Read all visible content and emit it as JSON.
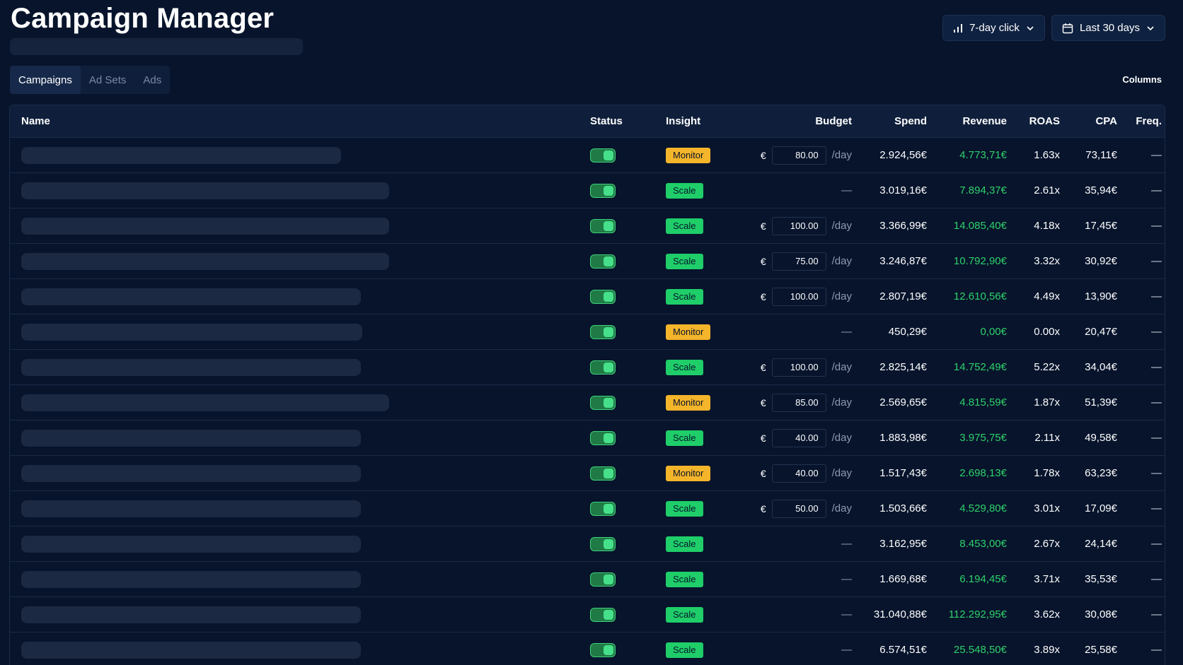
{
  "header": {
    "title": "Campaign Manager",
    "attribution_label": "7-day click",
    "date_range_label": "Last 30 days",
    "columns_label": "Columns"
  },
  "tabs": [
    {
      "label": "Campaigns",
      "active": true
    },
    {
      "label": "Ad Sets",
      "active": false
    },
    {
      "label": "Ads",
      "active": false
    }
  ],
  "colors": {
    "background": "#07142c",
    "monitor_badge": "#f5b52a",
    "scale_badge": "#1fce69",
    "revenue_text": "#2fd16a",
    "toggle_on": "#46e08a"
  },
  "table": {
    "columns": [
      "Name",
      "Status",
      "Insight",
      "Budget",
      "Spend",
      "Revenue",
      "ROAS",
      "CPA",
      "Freq."
    ],
    "budget_currency": "€",
    "budget_suffix": "/day",
    "rows": [
      {
        "insight": "Monitor",
        "insight_type": "monitor",
        "budget": "80.00",
        "spend": "2.924,56€",
        "revenue": "4.773,71€",
        "roas": "1.63x",
        "cpa": "73,11€",
        "freq": "—"
      },
      {
        "insight": "Scale",
        "insight_type": "scale",
        "budget": null,
        "spend": "3.019,16€",
        "revenue": "7.894,37€",
        "roas": "2.61x",
        "cpa": "35,94€",
        "freq": "—"
      },
      {
        "insight": "Scale",
        "insight_type": "scale",
        "budget": "100.00",
        "spend": "3.366,99€",
        "revenue": "14.085,40€",
        "roas": "4.18x",
        "cpa": "17,45€",
        "freq": "—"
      },
      {
        "insight": "Scale",
        "insight_type": "scale",
        "budget": "75.00",
        "spend": "3.246,87€",
        "revenue": "10.792,90€",
        "roas": "3.32x",
        "cpa": "30,92€",
        "freq": "—"
      },
      {
        "insight": "Scale",
        "insight_type": "scale",
        "budget": "100.00",
        "spend": "2.807,19€",
        "revenue": "12.610,56€",
        "roas": "4.49x",
        "cpa": "13,90€",
        "freq": "—"
      },
      {
        "insight": "Monitor",
        "insight_type": "monitor",
        "budget": null,
        "spend": "450,29€",
        "revenue": "0,00€",
        "roas": "0.00x",
        "cpa": "20,47€",
        "freq": "—"
      },
      {
        "insight": "Scale",
        "insight_type": "scale",
        "budget": "100.00",
        "spend": "2.825,14€",
        "revenue": "14.752,49€",
        "roas": "5.22x",
        "cpa": "34,04€",
        "freq": "—"
      },
      {
        "insight": "Monitor",
        "insight_type": "monitor",
        "budget": "85.00",
        "spend": "2.569,65€",
        "revenue": "4.815,59€",
        "roas": "1.87x",
        "cpa": "51,39€",
        "freq": "—"
      },
      {
        "insight": "Scale",
        "insight_type": "scale",
        "budget": "40.00",
        "spend": "1.883,98€",
        "revenue": "3.975,75€",
        "roas": "2.11x",
        "cpa": "49,58€",
        "freq": "—"
      },
      {
        "insight": "Monitor",
        "insight_type": "monitor",
        "budget": "40.00",
        "spend": "1.517,43€",
        "revenue": "2.698,13€",
        "roas": "1.78x",
        "cpa": "63,23€",
        "freq": "—"
      },
      {
        "insight": "Scale",
        "insight_type": "scale",
        "budget": "50.00",
        "spend": "1.503,66€",
        "revenue": "4.529,80€",
        "roas": "3.01x",
        "cpa": "17,09€",
        "freq": "—"
      },
      {
        "insight": "Scale",
        "insight_type": "scale",
        "budget": null,
        "spend": "3.162,95€",
        "revenue": "8.453,00€",
        "roas": "2.67x",
        "cpa": "24,14€",
        "freq": "—"
      },
      {
        "insight": "Scale",
        "insight_type": "scale",
        "budget": null,
        "spend": "1.669,68€",
        "revenue": "6.194,45€",
        "roas": "3.71x",
        "cpa": "35,53€",
        "freq": "—"
      },
      {
        "insight": "Scale",
        "insight_type": "scale",
        "budget": null,
        "spend": "31.040,88€",
        "revenue": "112.292,95€",
        "roas": "3.62x",
        "cpa": "30,08€",
        "freq": "—"
      },
      {
        "insight": "Scale",
        "insight_type": "scale",
        "budget": null,
        "spend": "6.574,51€",
        "revenue": "25.548,50€",
        "roas": "3.89x",
        "cpa": "25,58€",
        "freq": "—"
      }
    ]
  }
}
